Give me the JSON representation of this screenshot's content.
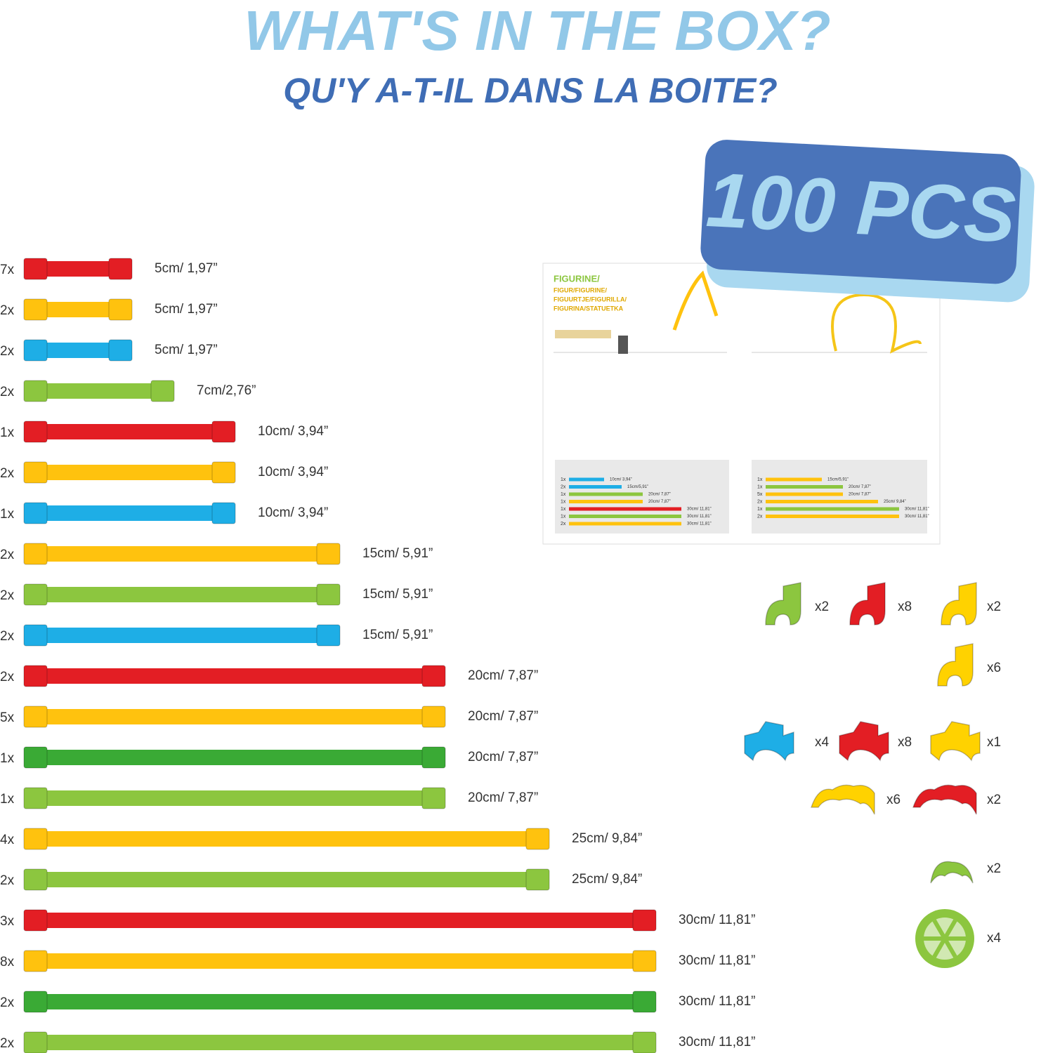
{
  "header": {
    "title": "WHAT'S IN THE BOX?",
    "subtitle": "QU'Y A-T-IL DANS LA BOITE?"
  },
  "badge": "100 PCS",
  "rods": [
    {
      "count": "7x",
      "label": "5cm/ 1,97”",
      "color": "#e31e24"
    },
    {
      "count": "2x",
      "label": "5cm/ 1,97”",
      "color": "#ffc20e"
    },
    {
      "count": "2x",
      "label": "5cm/ 1,97”",
      "color": "#1eaee6"
    },
    {
      "count": "2x",
      "label": "7cm/2,76”",
      "color": "#8cc63f"
    },
    {
      "count": "1x",
      "label": "10cm/ 3,94”",
      "color": "#e31e24"
    },
    {
      "count": "2x",
      "label": "10cm/ 3,94”",
      "color": "#ffc20e"
    },
    {
      "count": "1x",
      "label": "10cm/ 3,94”",
      "color": "#1eaee6"
    },
    {
      "count": "2x",
      "label": "15cm/ 5,91”",
      "color": "#ffc20e"
    },
    {
      "count": "2x",
      "label": "15cm/ 5,91”",
      "color": "#8cc63f"
    },
    {
      "count": "2x",
      "label": "15cm/ 5,91”",
      "color": "#1eaee6"
    },
    {
      "count": "2x",
      "label": "20cm/ 7,87”",
      "color": "#e31e24"
    },
    {
      "count": "5x",
      "label": "20cm/ 7,87”",
      "color": "#ffc20e"
    },
    {
      "count": "1x",
      "label": "20cm/ 7,87”",
      "color": "#3aaa35"
    },
    {
      "count": "1x",
      "label": "20cm/ 7,87”",
      "color": "#8cc63f"
    },
    {
      "count": "4x",
      "label": "25cm/ 9,84”",
      "color": "#ffc20e"
    },
    {
      "count": "2x",
      "label": "25cm/ 9,84”",
      "color": "#8cc63f"
    },
    {
      "count": "3x",
      "label": "30cm/ 11,81”",
      "color": "#e31e24"
    },
    {
      "count": "8x",
      "label": "30cm/ 11,81”",
      "color": "#ffc20e"
    },
    {
      "count": "2x",
      "label": "30cm/ 11,81”",
      "color": "#3aaa35"
    },
    {
      "count": "2x",
      "label": "30cm/ 11,81”",
      "color": "#8cc63f"
    }
  ],
  "connectors": [
    {
      "label": "x2",
      "color": "#8cc63f",
      "shape": "elbow"
    },
    {
      "label": "x8",
      "color": "#e31e24",
      "shape": "elbow"
    },
    {
      "label": "x2",
      "color": "#ffd200",
      "shape": "elbow"
    },
    {
      "label": "x6",
      "color": "#ffd200",
      "shape": "elbow"
    },
    {
      "label": "x4",
      "color": "#1eaee6",
      "shape": "tee"
    },
    {
      "label": "x8",
      "color": "#e31e24",
      "shape": "tee"
    },
    {
      "label": "x1",
      "color": "#ffd200",
      "shape": "tee"
    },
    {
      "label": "x6",
      "color": "#ffd200",
      "shape": "triple"
    },
    {
      "label": "x2",
      "color": "#e31e24",
      "shape": "triple"
    },
    {
      "label": "x2",
      "color": "#8cc63f",
      "shape": "double"
    },
    {
      "label": "x4",
      "color": "#8cc63f",
      "shape": "wheel"
    }
  ],
  "manual": {
    "heading": "FIGURINE/",
    "subheading": [
      "FIGUR/FIGURINE/",
      "FIGUURTJE/FIGURILLA/",
      "FIGURINA/STATUETKA"
    ],
    "left_table": [
      {
        "count": "1x",
        "label": "10cm/ 3,94”",
        "color": "#1eaee6"
      },
      {
        "count": "2x",
        "label": "15cm/5,91”",
        "color": "#1eaee6"
      },
      {
        "count": "1x",
        "label": "20cm/ 7,87”",
        "color": "#8cc63f"
      },
      {
        "count": "1x",
        "label": "20cm/ 7,87”",
        "color": "#ffc20e"
      },
      {
        "count": "1x",
        "label": "30cm/ 11,81”",
        "color": "#e31e24"
      },
      {
        "count": "1x",
        "label": "30cm/ 11,81”",
        "color": "#8cc63f"
      },
      {
        "count": "2x",
        "label": "30cm/ 11,81”",
        "color": "#ffc20e"
      }
    ],
    "right_table": [
      {
        "count": "1x",
        "label": "15cm/5,91”",
        "color": "#ffc20e"
      },
      {
        "count": "1x",
        "label": "20cm/ 7,87”",
        "color": "#8cc63f"
      },
      {
        "count": "5x",
        "label": "20cm/ 7,87”",
        "color": "#ffc20e"
      },
      {
        "count": "2x",
        "label": "25cm/ 9,84”",
        "color": "#ffc20e"
      },
      {
        "count": "1x",
        "label": "30cm/ 11,81”",
        "color": "#8cc63f"
      },
      {
        "count": "2x",
        "label": "30cm/ 11,81”",
        "color": "#ffc20e"
      }
    ]
  }
}
